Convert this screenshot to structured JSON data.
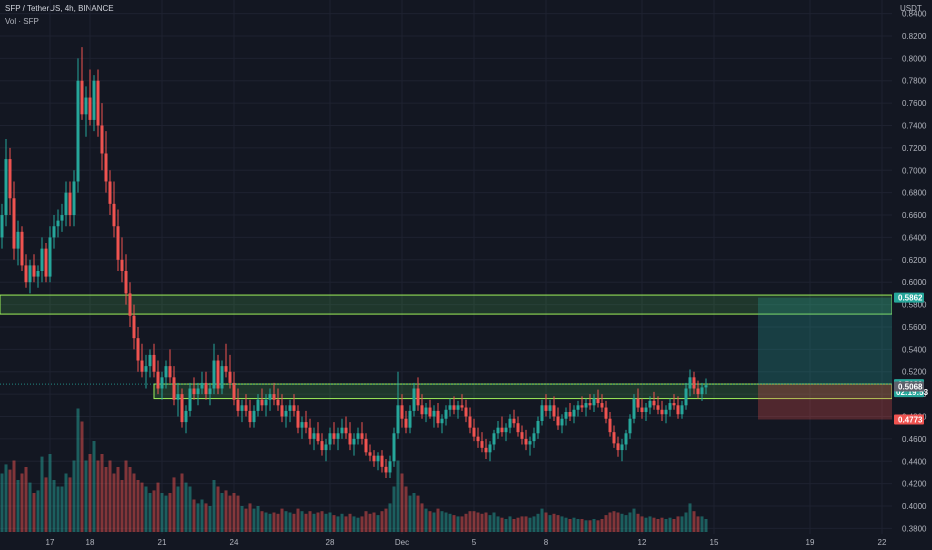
{
  "header": {
    "symbol_line": "SFP / TetherUS, 4h, BINANCE",
    "volume_label": "Vol · SFP"
  },
  "axis": {
    "currency": "USDT"
  },
  "colors": {
    "background": "#131722",
    "bull": "#26a69a",
    "bear": "#ef5350",
    "zone_border": "#9ef05a",
    "grid": "#1e2230"
  },
  "chart_data": {
    "type": "candlestick",
    "y_ticks": [
      "0.8400",
      "0.8200",
      "0.8000",
      "0.7800",
      "0.7600",
      "0.7400",
      "0.7200",
      "0.7000",
      "0.6800",
      "0.6600",
      "0.6400",
      "0.6200",
      "0.6000",
      "0.5800",
      "0.5600",
      "0.5400",
      "0.5200",
      "0.5000",
      "0.4800",
      "0.4600",
      "0.4400",
      "0.4200",
      "0.4000",
      "0.3800"
    ],
    "ylim": [
      0.375,
      0.845
    ],
    "x_ticks": [
      {
        "label": "17",
        "i": 12
      },
      {
        "label": "18",
        "i": 22
      },
      {
        "label": "21",
        "i": 40
      },
      {
        "label": "24",
        "i": 58
      },
      {
        "label": "28",
        "i": 82
      },
      {
        "label": "Dec",
        "i": 100
      },
      {
        "label": "5",
        "i": 118
      },
      {
        "label": "8",
        "i": 136
      },
      {
        "label": "12",
        "i": 160
      },
      {
        "label": "15",
        "i": 178
      },
      {
        "label": "19",
        "i": 202
      },
      {
        "label": "22",
        "i": 220
      }
    ],
    "zones": [
      {
        "name": "upper-resistance-zone",
        "top": 0.5885,
        "bottom": 0.5715,
        "start_i": -2,
        "end_i": 229
      },
      {
        "name": "support-zone",
        "top": 0.509,
        "bottom": 0.496,
        "start_i": 38,
        "end_i": 229
      }
    ],
    "position": {
      "entry": 0.5089,
      "target": 0.5862,
      "stop": 0.4773,
      "start_i": 189,
      "end_i": 225
    },
    "price_labels": [
      {
        "value": "0.5862",
        "price": 0.5862,
        "color": "#26a69a"
      },
      {
        "value": "0.5089",
        "price": 0.5089,
        "color": "#26a69a",
        "countdown": "02:19:53"
      },
      {
        "value": "0.5068",
        "price": 0.5068,
        "color": "#5d606b"
      },
      {
        "value": "0.4773",
        "price": 0.4773,
        "color": "#ef5350"
      }
    ],
    "candles": [
      [
        0.64,
        0.67,
        0.63,
        0.66,
        0.45
      ],
      [
        0.66,
        0.728,
        0.65,
        0.71,
        0.52
      ],
      [
        0.71,
        0.72,
        0.66,
        0.675,
        0.48
      ],
      [
        0.675,
        0.69,
        0.62,
        0.63,
        0.55
      ],
      [
        0.63,
        0.655,
        0.615,
        0.645,
        0.4
      ],
      [
        0.645,
        0.65,
        0.61,
        0.615,
        0.45
      ],
      [
        0.615,
        0.625,
        0.595,
        0.6,
        0.5
      ],
      [
        0.6,
        0.62,
        0.59,
        0.615,
        0.38
      ],
      [
        0.615,
        0.625,
        0.6,
        0.605,
        0.3
      ],
      [
        0.605,
        0.615,
        0.595,
        0.61,
        0.32
      ],
      [
        0.61,
        0.64,
        0.6,
        0.63,
        0.58
      ],
      [
        0.63,
        0.635,
        0.6,
        0.605,
        0.42
      ],
      [
        0.605,
        0.65,
        0.6,
        0.64,
        0.6
      ],
      [
        0.64,
        0.66,
        0.63,
        0.65,
        0.4
      ],
      [
        0.65,
        0.665,
        0.64,
        0.655,
        0.35
      ],
      [
        0.655,
        0.67,
        0.645,
        0.66,
        0.35
      ],
      [
        0.66,
        0.69,
        0.65,
        0.68,
        0.45
      ],
      [
        0.68,
        0.69,
        0.65,
        0.66,
        0.42
      ],
      [
        0.66,
        0.7,
        0.65,
        0.69,
        0.55
      ],
      [
        0.69,
        0.8,
        0.68,
        0.78,
        0.95
      ],
      [
        0.78,
        0.81,
        0.745,
        0.75,
        0.85
      ],
      [
        0.75,
        0.775,
        0.73,
        0.765,
        0.55
      ],
      [
        0.765,
        0.79,
        0.74,
        0.745,
        0.6
      ],
      [
        0.745,
        0.785,
        0.735,
        0.78,
        0.7
      ],
      [
        0.78,
        0.79,
        0.73,
        0.74,
        0.55
      ],
      [
        0.74,
        0.76,
        0.7,
        0.715,
        0.6
      ],
      [
        0.715,
        0.735,
        0.68,
        0.69,
        0.5
      ],
      [
        0.69,
        0.7,
        0.66,
        0.67,
        0.55
      ],
      [
        0.67,
        0.69,
        0.64,
        0.65,
        0.45
      ],
      [
        0.65,
        0.665,
        0.61,
        0.62,
        0.5
      ],
      [
        0.62,
        0.64,
        0.6,
        0.61,
        0.4
      ],
      [
        0.61,
        0.625,
        0.58,
        0.59,
        0.55
      ],
      [
        0.59,
        0.6,
        0.56,
        0.57,
        0.5
      ],
      [
        0.57,
        0.58,
        0.54,
        0.55,
        0.45
      ],
      [
        0.55,
        0.56,
        0.52,
        0.53,
        0.4
      ],
      [
        0.53,
        0.545,
        0.515,
        0.52,
        0.38
      ],
      [
        0.52,
        0.535,
        0.505,
        0.525,
        0.35
      ],
      [
        0.525,
        0.54,
        0.515,
        0.535,
        0.3
      ],
      [
        0.535,
        0.545,
        0.515,
        0.52,
        0.32
      ],
      [
        0.52,
        0.53,
        0.5,
        0.505,
        0.38
      ],
      [
        0.505,
        0.52,
        0.495,
        0.515,
        0.3
      ],
      [
        0.515,
        0.53,
        0.505,
        0.525,
        0.28
      ],
      [
        0.525,
        0.54,
        0.51,
        0.515,
        0.3
      ],
      [
        0.515,
        0.525,
        0.49,
        0.495,
        0.42
      ],
      [
        0.495,
        0.51,
        0.48,
        0.5,
        0.35
      ],
      [
        0.5,
        0.505,
        0.47,
        0.475,
        0.45
      ],
      [
        0.475,
        0.49,
        0.465,
        0.485,
        0.38
      ],
      [
        0.485,
        0.51,
        0.48,
        0.505,
        0.35
      ],
      [
        0.505,
        0.515,
        0.495,
        0.5,
        0.25
      ],
      [
        0.5,
        0.51,
        0.49,
        0.505,
        0.22
      ],
      [
        0.505,
        0.52,
        0.5,
        0.51,
        0.25
      ],
      [
        0.51,
        0.52,
        0.495,
        0.5,
        0.22
      ],
      [
        0.5,
        0.51,
        0.49,
        0.505,
        0.2
      ],
      [
        0.505,
        0.545,
        0.5,
        0.53,
        0.4
      ],
      [
        0.53,
        0.535,
        0.5,
        0.505,
        0.35
      ],
      [
        0.505,
        0.53,
        0.5,
        0.525,
        0.3
      ],
      [
        0.525,
        0.545,
        0.515,
        0.52,
        0.32
      ],
      [
        0.52,
        0.535,
        0.505,
        0.51,
        0.28
      ],
      [
        0.51,
        0.52,
        0.49,
        0.495,
        0.3
      ],
      [
        0.495,
        0.505,
        0.48,
        0.485,
        0.28
      ],
      [
        0.485,
        0.495,
        0.475,
        0.49,
        0.2
      ],
      [
        0.49,
        0.5,
        0.48,
        0.485,
        0.18
      ],
      [
        0.485,
        0.495,
        0.47,
        0.475,
        0.22
      ],
      [
        0.475,
        0.49,
        0.47,
        0.485,
        0.18
      ],
      [
        0.485,
        0.5,
        0.48,
        0.495,
        0.2
      ],
      [
        0.495,
        0.505,
        0.485,
        0.49,
        0.16
      ],
      [
        0.49,
        0.5,
        0.48,
        0.495,
        0.15
      ],
      [
        0.495,
        0.505,
        0.485,
        0.5,
        0.14
      ],
      [
        0.5,
        0.51,
        0.49,
        0.495,
        0.15
      ],
      [
        0.495,
        0.505,
        0.485,
        0.49,
        0.14
      ],
      [
        0.49,
        0.5,
        0.475,
        0.48,
        0.18
      ],
      [
        0.48,
        0.49,
        0.47,
        0.485,
        0.16
      ],
      [
        0.485,
        0.495,
        0.475,
        0.49,
        0.15
      ],
      [
        0.49,
        0.5,
        0.48,
        0.485,
        0.14
      ],
      [
        0.485,
        0.49,
        0.465,
        0.47,
        0.18
      ],
      [
        0.47,
        0.48,
        0.46,
        0.475,
        0.16
      ],
      [
        0.475,
        0.485,
        0.465,
        0.47,
        0.14
      ],
      [
        0.47,
        0.478,
        0.455,
        0.46,
        0.16
      ],
      [
        0.46,
        0.47,
        0.45,
        0.465,
        0.14
      ],
      [
        0.465,
        0.475,
        0.455,
        0.458,
        0.15
      ],
      [
        0.458,
        0.465,
        0.445,
        0.45,
        0.16
      ],
      [
        0.45,
        0.46,
        0.44,
        0.455,
        0.14
      ],
      [
        0.455,
        0.47,
        0.45,
        0.465,
        0.15
      ],
      [
        0.465,
        0.475,
        0.455,
        0.46,
        0.13
      ],
      [
        0.46,
        0.47,
        0.45,
        0.465,
        0.12
      ],
      [
        0.465,
        0.478,
        0.46,
        0.47,
        0.14
      ],
      [
        0.47,
        0.48,
        0.46,
        0.465,
        0.12
      ],
      [
        0.465,
        0.475,
        0.45,
        0.455,
        0.14
      ],
      [
        0.455,
        0.465,
        0.445,
        0.46,
        0.12
      ],
      [
        0.46,
        0.47,
        0.455,
        0.465,
        0.11
      ],
      [
        0.465,
        0.475,
        0.455,
        0.46,
        0.12
      ],
      [
        0.46,
        0.465,
        0.445,
        0.448,
        0.16
      ],
      [
        0.448,
        0.455,
        0.44,
        0.445,
        0.14
      ],
      [
        0.445,
        0.45,
        0.435,
        0.44,
        0.15
      ],
      [
        0.44,
        0.448,
        0.432,
        0.445,
        0.13
      ],
      [
        0.445,
        0.45,
        0.43,
        0.435,
        0.16
      ],
      [
        0.435,
        0.442,
        0.425,
        0.43,
        0.18
      ],
      [
        0.43,
        0.445,
        0.425,
        0.44,
        0.22
      ],
      [
        0.44,
        0.47,
        0.435,
        0.465,
        0.35
      ],
      [
        0.465,
        0.52,
        0.46,
        0.49,
        0.55
      ],
      [
        0.49,
        0.5,
        0.47,
        0.478,
        0.45
      ],
      [
        0.478,
        0.485,
        0.465,
        0.47,
        0.35
      ],
      [
        0.47,
        0.49,
        0.465,
        0.485,
        0.28
      ],
      [
        0.485,
        0.51,
        0.48,
        0.505,
        0.3
      ],
      [
        0.505,
        0.515,
        0.485,
        0.49,
        0.28
      ],
      [
        0.49,
        0.5,
        0.478,
        0.482,
        0.22
      ],
      [
        0.482,
        0.492,
        0.475,
        0.488,
        0.18
      ],
      [
        0.488,
        0.495,
        0.478,
        0.48,
        0.16
      ],
      [
        0.48,
        0.49,
        0.47,
        0.485,
        0.15
      ],
      [
        0.485,
        0.492,
        0.47,
        0.474,
        0.18
      ],
      [
        0.474,
        0.482,
        0.465,
        0.478,
        0.16
      ],
      [
        0.478,
        0.49,
        0.472,
        0.486,
        0.15
      ],
      [
        0.486,
        0.496,
        0.48,
        0.49,
        0.14
      ],
      [
        0.49,
        0.498,
        0.482,
        0.486,
        0.13
      ],
      [
        0.486,
        0.494,
        0.478,
        0.49,
        0.12
      ],
      [
        0.49,
        0.5,
        0.485,
        0.488,
        0.12
      ],
      [
        0.488,
        0.495,
        0.475,
        0.48,
        0.14
      ],
      [
        0.48,
        0.488,
        0.465,
        0.47,
        0.16
      ],
      [
        0.47,
        0.478,
        0.458,
        0.462,
        0.16
      ],
      [
        0.462,
        0.47,
        0.452,
        0.458,
        0.15
      ],
      [
        0.458,
        0.466,
        0.448,
        0.452,
        0.14
      ],
      [
        0.452,
        0.46,
        0.442,
        0.448,
        0.15
      ],
      [
        0.448,
        0.458,
        0.44,
        0.455,
        0.13
      ],
      [
        0.455,
        0.468,
        0.45,
        0.465,
        0.15
      ],
      [
        0.465,
        0.476,
        0.46,
        0.47,
        0.12
      ],
      [
        0.47,
        0.48,
        0.462,
        0.466,
        0.11
      ],
      [
        0.466,
        0.474,
        0.458,
        0.47,
        0.1
      ],
      [
        0.47,
        0.482,
        0.465,
        0.478,
        0.12
      ],
      [
        0.478,
        0.486,
        0.47,
        0.474,
        0.1
      ],
      [
        0.474,
        0.48,
        0.462,
        0.466,
        0.11
      ],
      [
        0.466,
        0.472,
        0.455,
        0.46,
        0.12
      ],
      [
        0.46,
        0.468,
        0.45,
        0.455,
        0.12
      ],
      [
        0.455,
        0.462,
        0.445,
        0.458,
        0.11
      ],
      [
        0.458,
        0.47,
        0.452,
        0.465,
        0.12
      ],
      [
        0.465,
        0.48,
        0.46,
        0.476,
        0.14
      ],
      [
        0.476,
        0.495,
        0.472,
        0.49,
        0.18
      ],
      [
        0.49,
        0.5,
        0.48,
        0.485,
        0.15
      ],
      [
        0.485,
        0.495,
        0.478,
        0.49,
        0.13
      ],
      [
        0.49,
        0.498,
        0.476,
        0.48,
        0.14
      ],
      [
        0.48,
        0.488,
        0.468,
        0.472,
        0.13
      ],
      [
        0.472,
        0.482,
        0.465,
        0.478,
        0.12
      ],
      [
        0.478,
        0.488,
        0.472,
        0.484,
        0.11
      ],
      [
        0.484,
        0.492,
        0.476,
        0.48,
        0.1
      ],
      [
        0.48,
        0.49,
        0.474,
        0.486,
        0.11
      ],
      [
        0.486,
        0.494,
        0.48,
        0.49,
        0.1
      ],
      [
        0.49,
        0.498,
        0.484,
        0.488,
        0.1
      ],
      [
        0.488,
        0.496,
        0.48,
        0.492,
        0.09
      ],
      [
        0.492,
        0.5,
        0.486,
        0.49,
        0.09
      ],
      [
        0.49,
        0.5,
        0.484,
        0.496,
        0.1
      ],
      [
        0.496,
        0.504,
        0.488,
        0.492,
        0.09
      ],
      [
        0.492,
        0.5,
        0.484,
        0.488,
        0.1
      ],
      [
        0.488,
        0.494,
        0.474,
        0.478,
        0.13
      ],
      [
        0.478,
        0.484,
        0.462,
        0.466,
        0.15
      ],
      [
        0.466,
        0.472,
        0.452,
        0.456,
        0.16
      ],
      [
        0.456,
        0.462,
        0.444,
        0.45,
        0.15
      ],
      [
        0.45,
        0.46,
        0.44,
        0.455,
        0.14
      ],
      [
        0.455,
        0.468,
        0.45,
        0.465,
        0.13
      ],
      [
        0.465,
        0.482,
        0.46,
        0.478,
        0.15
      ],
      [
        0.478,
        0.5,
        0.474,
        0.496,
        0.18
      ],
      [
        0.496,
        0.505,
        0.484,
        0.488,
        0.14
      ],
      [
        0.488,
        0.496,
        0.478,
        0.484,
        0.12
      ],
      [
        0.484,
        0.492,
        0.476,
        0.488,
        0.11
      ],
      [
        0.488,
        0.498,
        0.482,
        0.494,
        0.12
      ],
      [
        0.494,
        0.502,
        0.486,
        0.49,
        0.11
      ],
      [
        0.49,
        0.498,
        0.482,
        0.486,
        0.1
      ],
      [
        0.486,
        0.494,
        0.476,
        0.482,
        0.11
      ],
      [
        0.482,
        0.49,
        0.474,
        0.486,
        0.1
      ],
      [
        0.486,
        0.496,
        0.48,
        0.492,
        0.11
      ],
      [
        0.492,
        0.5,
        0.486,
        0.49,
        0.1
      ],
      [
        0.49,
        0.498,
        0.478,
        0.482,
        0.12
      ],
      [
        0.482,
        0.494,
        0.478,
        0.49,
        0.12
      ],
      [
        0.49,
        0.51,
        0.486,
        0.505,
        0.15
      ],
      [
        0.505,
        0.522,
        0.498,
        0.515,
        0.22
      ],
      [
        0.515,
        0.52,
        0.5,
        0.505,
        0.16
      ],
      [
        0.505,
        0.512,
        0.496,
        0.5,
        0.12
      ],
      [
        0.5,
        0.51,
        0.494,
        0.506,
        0.12
      ],
      [
        0.506,
        0.514,
        0.5,
        0.508,
        0.1
      ]
    ]
  }
}
